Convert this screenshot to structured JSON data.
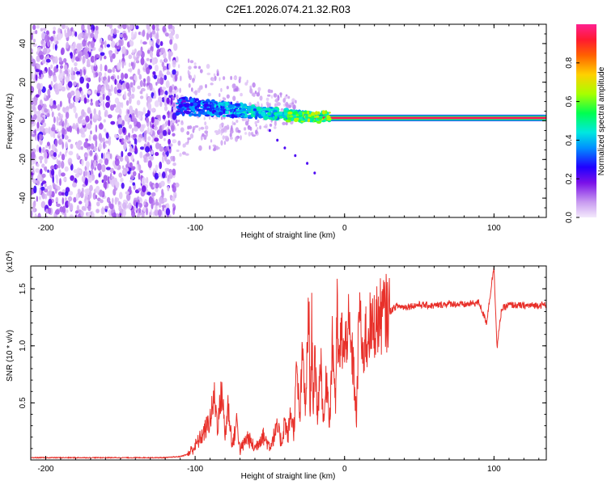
{
  "chart_data": [
    {
      "type": "heatmap",
      "title": "C2E1.2026.074.21.32.R03",
      "xlabel": "Height of straight line (km)",
      "ylabel": "Frequency (Hz)",
      "xlim": [
        -210,
        135
      ],
      "ylim": [
        -50,
        50
      ],
      "x_ticks": [
        -200,
        -100,
        0,
        100
      ],
      "y_ticks": [
        -40,
        -20,
        0,
        20,
        40
      ],
      "grid": false,
      "description_series": [
        {
          "name": "broadband noise region",
          "x_range": [
            -210,
            -112
          ],
          "y_range": [
            -50,
            50
          ],
          "amplitude": 0.15
        },
        {
          "name": "transition band",
          "x_range": [
            -112,
            -20
          ],
          "y_center_start": 8,
          "y_center_end": 2,
          "amplitude": 0.4
        },
        {
          "name": "coherent signal line",
          "x_range": [
            -20,
            135
          ],
          "y_center": 1.5,
          "amplitude": 0.95
        }
      ],
      "colorbar": {
        "label": "Normalized spectral amplitude",
        "range": [
          0.0,
          1.0
        ],
        "ticks": [
          "0.0",
          "0.2",
          "0.4",
          "0.6",
          "0.8"
        ],
        "colors": [
          "#e8d8f6",
          "#b070e8",
          "#6a00e0",
          "#0000ff",
          "#00e0ff",
          "#00ff40",
          "#c8ff00",
          "#ffb000",
          "#ff2020",
          "#ff2090"
        ]
      }
    },
    {
      "type": "line",
      "title": "",
      "xlabel": "Height of straight line (km)",
      "ylabel": "SNR (10 * v/v)",
      "multiplier_label": "(x10",
      "multiplier_exp": "4",
      "multiplier_close": ")",
      "xlim": [
        -210,
        135
      ],
      "ylim": [
        0.0,
        1.7
      ],
      "x_ticks": [
        -200,
        -100,
        0,
        100
      ],
      "y_ticks": [
        "0.5",
        "1.0",
        "1.5"
      ],
      "y_tick_values": [
        0.5,
        1.0,
        1.5
      ],
      "color": "#e8302a",
      "series": [
        {
          "name": "SNR",
          "x": [
            -210,
            -180,
            -150,
            -120,
            -110,
            -105,
            -100,
            -95,
            -90,
            -87,
            -85,
            -82,
            -80,
            -78,
            -75,
            -72,
            -70,
            -65,
            -60,
            -55,
            -50,
            -45,
            -42,
            -40,
            -38,
            -36,
            -34,
            -32,
            -30,
            -28,
            -26,
            -24,
            -23,
            -22,
            -21,
            -20,
            -18,
            -16,
            -14,
            -12,
            -10,
            -8,
            -6,
            -5,
            -4,
            -2,
            0,
            2,
            4,
            6,
            8,
            10,
            12,
            14,
            15,
            16,
            18,
            20,
            25,
            30,
            35,
            40,
            50,
            60,
            70,
            80,
            90,
            95,
            98,
            100,
            102,
            105,
            110,
            120,
            135
          ],
          "y": [
            0.02,
            0.02,
            0.02,
            0.02,
            0.03,
            0.05,
            0.12,
            0.22,
            0.35,
            0.55,
            0.3,
            0.62,
            0.2,
            0.48,
            0.12,
            0.35,
            0.08,
            0.2,
            0.1,
            0.22,
            0.12,
            0.28,
            0.15,
            0.35,
            0.2,
            0.42,
            0.25,
            0.8,
            0.35,
            0.95,
            0.4,
            1.45,
            0.3,
            1.2,
            0.5,
            0.85,
            0.4,
            0.9,
            0.3,
            0.75,
            0.35,
            1.05,
            0.5,
            1.3,
            0.8,
            1.1,
            0.9,
            1.2,
            1.0,
            0.8,
            0.35,
            1.45,
            0.8,
            1.15,
            0.95,
            1.22,
            1.1,
            1.2,
            1.27,
            1.3,
            1.35,
            1.34,
            1.36,
            1.35,
            1.37,
            1.36,
            1.38,
            1.2,
            1.5,
            1.7,
            0.98,
            1.32,
            1.36,
            1.35,
            1.36
          ]
        }
      ]
    }
  ]
}
